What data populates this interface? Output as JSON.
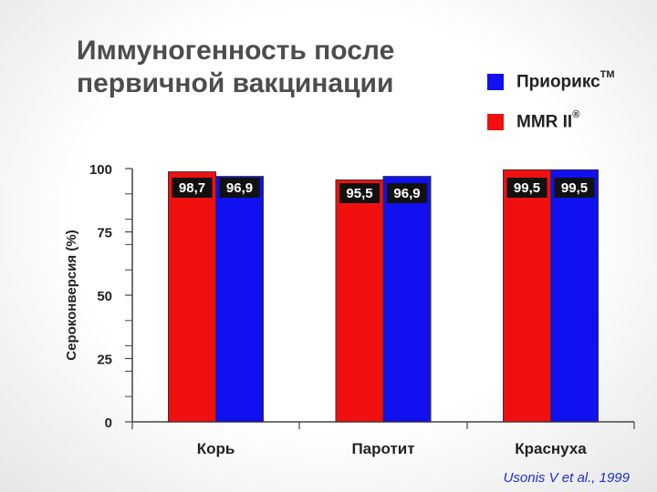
{
  "title": "Иммуногенность после первичной вакцинации",
  "legend": [
    {
      "label": "Приорикс",
      "superscript": "TM",
      "color": "#1010f0"
    },
    {
      "label": "MMR II",
      "superscript": "®",
      "color": "#f01010"
    }
  ],
  "citation": "Usonis V et al., 1999",
  "chart_data": {
    "type": "bar",
    "ylabel": "Сероконверсия (%)",
    "ylim": [
      0,
      100
    ],
    "y_ticks": [
      "0",
      "25",
      "50",
      "75",
      "100"
    ],
    "categories": [
      "Корь",
      "Паротит",
      "Краснуха"
    ],
    "series": [
      {
        "name": "MMR II",
        "color": "#f01010",
        "values": [
          98.7,
          95.5,
          99.5
        ],
        "labels": [
          "98,7",
          "95,5",
          "99,5"
        ]
      },
      {
        "name": "Приорикс",
        "color": "#1010f0",
        "values": [
          96.9,
          96.9,
          99.5
        ],
        "labels": [
          "96,9",
          "96,9",
          "99,5"
        ]
      }
    ]
  }
}
